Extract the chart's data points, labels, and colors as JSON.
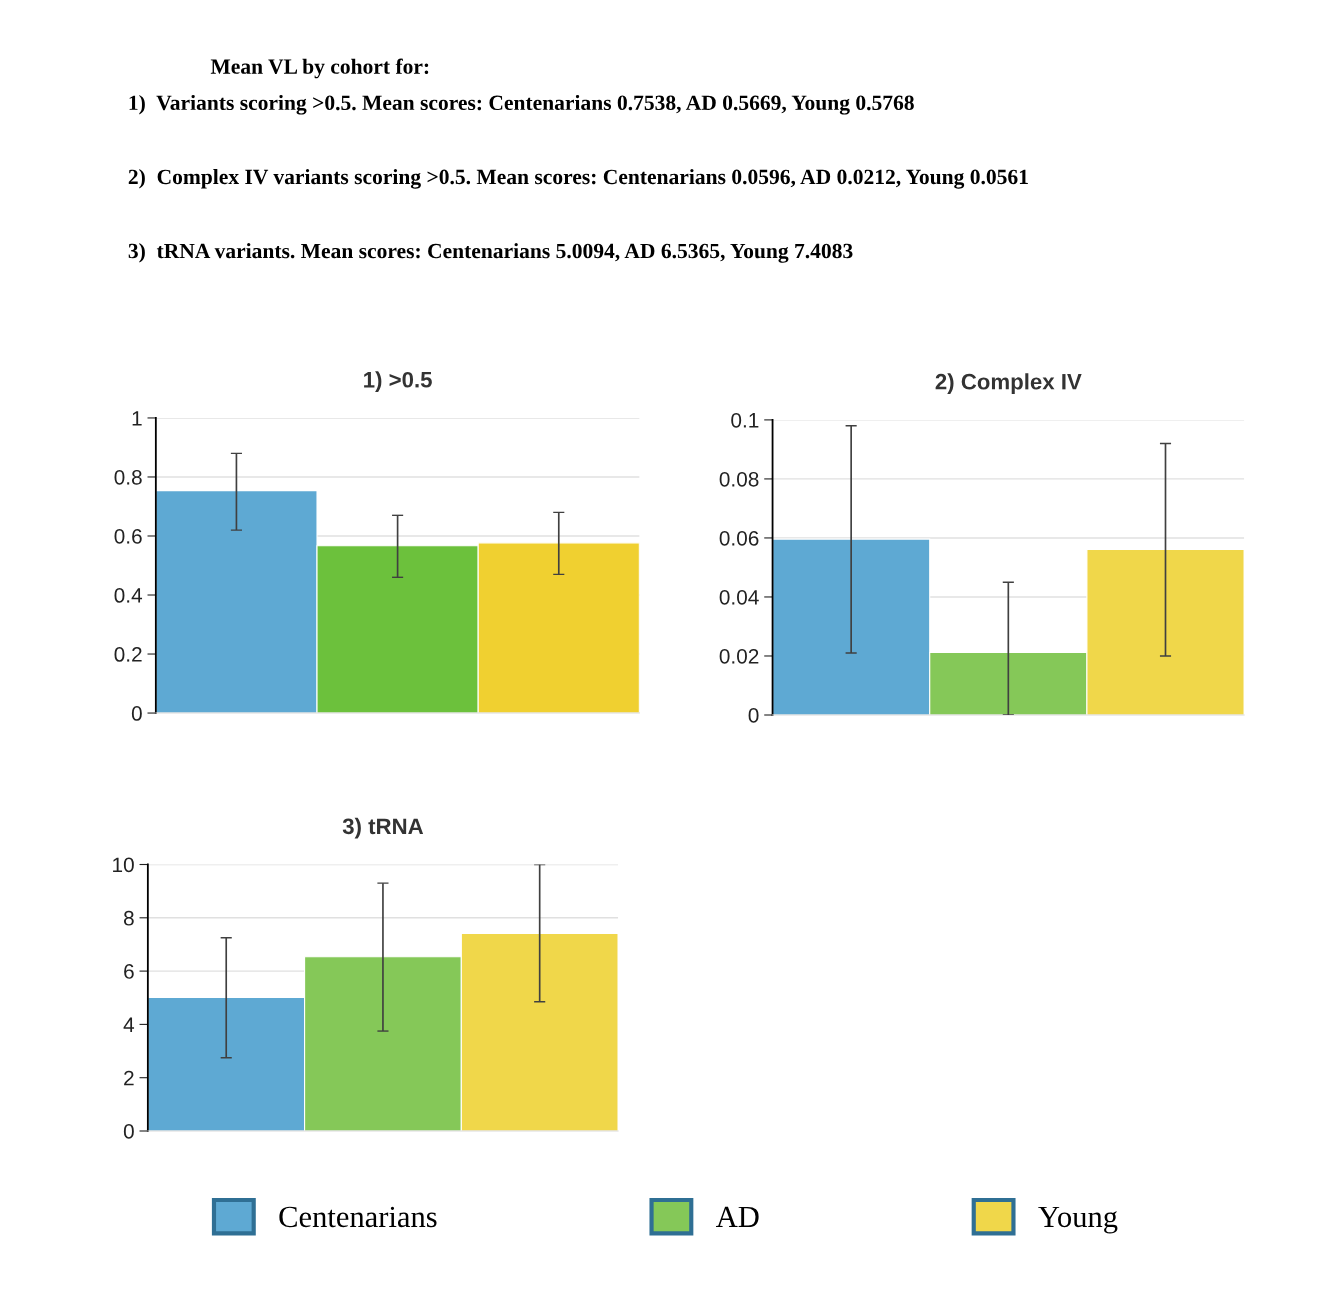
{
  "chart_data": [
    {
      "type": "other",
      "annotations": [
        "Mean VL by cohort for:",
        "1)  Variants scoring >0.5. Mean scores: Centenarians 0.7538, AD 0.5669, Young 0.5768",
        "2)  Complex IV variants scoring >0.5. Mean scores: Centenarians 0.0596, AD 0.0212, Young 0.0561",
        "3)  tRNA variants. Mean scores: Centenarians 5.0094, AD 6.5365, Young 7.4083"
      ]
    },
    {
      "type": "bar",
      "title": "1) >0.5",
      "categories": [
        null
      ],
      "ylim": [
        0,
        1
      ],
      "yticks": [
        0,
        0.2,
        0.4,
        0.6,
        0.8,
        1
      ],
      "grid": "y",
      "series": [
        {
          "color": "#5ea9d3",
          "values": [
            0.7538
          ],
          "errors": [
            [
              0.62,
              0.88
            ]
          ]
        },
        {
          "color": "#6cc13c",
          "values": [
            0.5669
          ],
          "errors": [
            [
              0.46,
              0.67
            ]
          ]
        },
        {
          "color": "#f0d030",
          "values": [
            0.5768
          ],
          "errors": [
            [
              0.47,
              0.68
            ]
          ]
        }
      ]
    },
    {
      "type": "bar",
      "title": "2) Complex IV",
      "categories": [
        null
      ],
      "ylim": [
        0,
        0.1
      ],
      "yticks": [
        0,
        0.02,
        0.04,
        0.06,
        0.08,
        0.1
      ],
      "grid": "y",
      "series": [
        {
          "color": "#5ea9d3",
          "values": [
            0.0596
          ],
          "errors": [
            [
              0.021,
              0.098
            ]
          ]
        },
        {
          "color": "#85c858",
          "values": [
            0.0212
          ],
          "errors": [
            [
              0,
              0.045
            ]
          ]
        },
        {
          "color": "#f0d74a",
          "values": [
            0.0561
          ],
          "errors": [
            [
              0.02,
              0.092
            ]
          ]
        }
      ]
    },
    {
      "type": "bar",
      "title": "3) tRNA",
      "categories": [
        null
      ],
      "ylim": [
        0,
        10
      ],
      "yticks": [
        0,
        2,
        4,
        6,
        8,
        10
      ],
      "grid": "y",
      "legend": "bottom",
      "series": [
        {
          "name": "Centenarians",
          "color": "#5ea9d3",
          "values": [
            5.0094
          ],
          "errors": [
            [
              2.75,
              7.25
            ]
          ]
        },
        {
          "name": "AD",
          "color": "#85c858",
          "values": [
            6.5365
          ],
          "errors": [
            [
              3.75,
              9.3
            ]
          ]
        },
        {
          "name": "Young",
          "color": "#f0d74a",
          "values": [
            7.4083
          ],
          "errors": [
            [
              4.85,
              10.0
            ]
          ]
        }
      ]
    }
  ]
}
